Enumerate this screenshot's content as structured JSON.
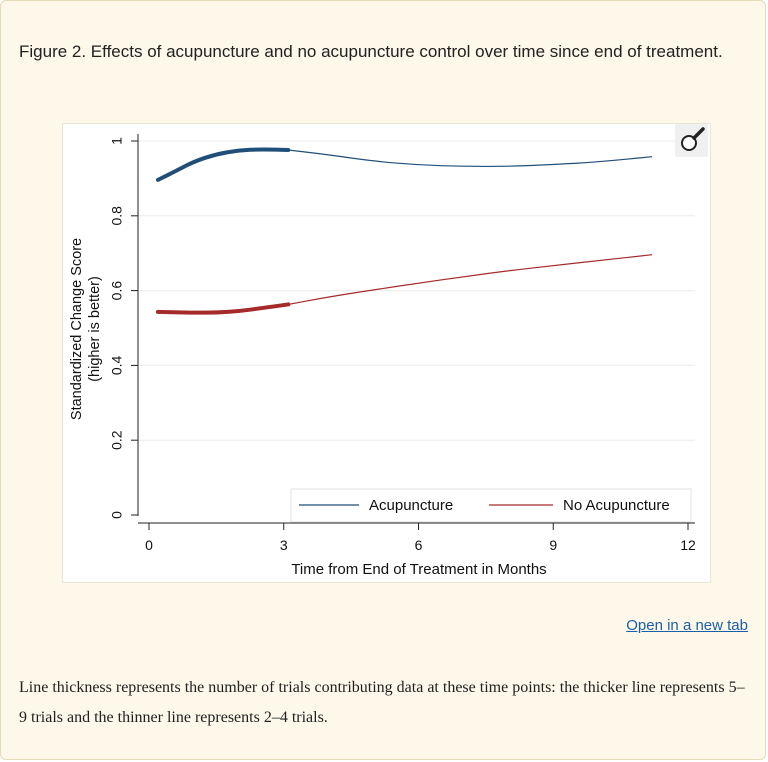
{
  "caption": "Figure 2. Effects of acupuncture and no acupuncture control over time since end of treatment.",
  "open_link": "Open in a new tab",
  "footnote": "Line thickness represents the number of trials contributing data at these time points: the thicker line represents 5–9 trials and the thinner line represents 2–4 trials.",
  "zoom_icon": "magnifier-icon",
  "colors": {
    "acupuncture": "#1f4e79",
    "no_acupuncture": "#a52a2a"
  },
  "chart_data": {
    "type": "line",
    "xlabel": "Time from End of Treatment in Months",
    "ylabel_line1": "Standardized Change Score",
    "ylabel_line2": "(higher is better)",
    "xlim": [
      0,
      12
    ],
    "ylim": [
      0,
      1
    ],
    "x_ticks": [
      "0",
      "3",
      "6",
      "9",
      "12"
    ],
    "y_ticks": [
      "0",
      "0.2",
      "0.4",
      "0.6",
      "0.8",
      "1"
    ],
    "x_tick_values": [
      0,
      3,
      6,
      9,
      12
    ],
    "y_tick_values": [
      0,
      0.2,
      0.4,
      0.6,
      0.8,
      1
    ],
    "legend": [
      "Acupuncture",
      "No Acupuncture"
    ],
    "legend_position": "bottom",
    "thick_until_month": 3.1,
    "series": [
      {
        "name": "Acupuncture",
        "x": [
          0.2,
          0.6,
          1.0,
          1.5,
          2.0,
          2.5,
          3.1,
          4.0,
          5.0,
          6.0,
          7.0,
          8.0,
          9.0,
          10.0,
          11.2
        ],
        "values": [
          0.896,
          0.92,
          0.945,
          0.965,
          0.975,
          0.978,
          0.976,
          0.963,
          0.946,
          0.936,
          0.932,
          0.932,
          0.937,
          0.944,
          0.958
        ]
      },
      {
        "name": "No Acupuncture",
        "x": [
          0.2,
          0.6,
          1.0,
          1.5,
          2.0,
          2.5,
          3.1,
          4.0,
          5.0,
          6.0,
          7.0,
          8.0,
          9.0,
          10.0,
          11.2
        ],
        "values": [
          0.543,
          0.542,
          0.541,
          0.541,
          0.545,
          0.553,
          0.563,
          0.583,
          0.602,
          0.62,
          0.637,
          0.653,
          0.667,
          0.68,
          0.696
        ]
      }
    ]
  }
}
